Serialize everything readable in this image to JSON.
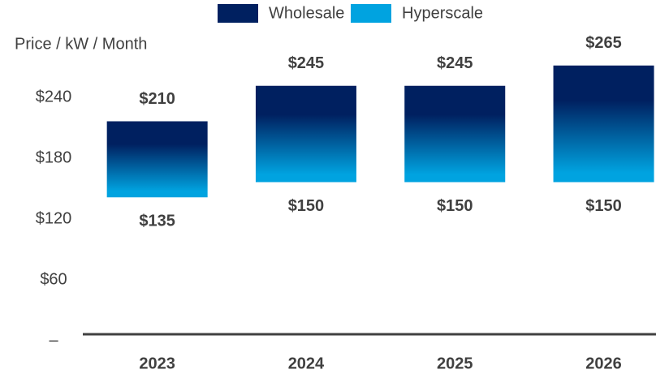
{
  "chart_data": {
    "type": "bar",
    "y_axis_label": "Price / kW / Month",
    "categories": [
      "2023",
      "2024",
      "2025",
      "2026"
    ],
    "series": [
      {
        "name": "Wholesale",
        "color": "#002060",
        "values": [
          210,
          245,
          245,
          265
        ],
        "value_labels": [
          "$210",
          "$245",
          "$245",
          "$265"
        ]
      },
      {
        "name": "Hyperscale",
        "color": "#00a3e0",
        "values": [
          135,
          150,
          150,
          150
        ],
        "value_labels": [
          "$135",
          "$150",
          "$150",
          "$150"
        ]
      }
    ],
    "ylim": [
      0,
      270
    ],
    "yticks": [
      {
        "value": 0,
        "label": "–"
      },
      {
        "value": 60,
        "label": "$60"
      },
      {
        "value": 120,
        "label": "$120"
      },
      {
        "value": 180,
        "label": "$180"
      },
      {
        "value": 240,
        "label": "$240"
      }
    ],
    "grid": false,
    "legend": "top"
  }
}
